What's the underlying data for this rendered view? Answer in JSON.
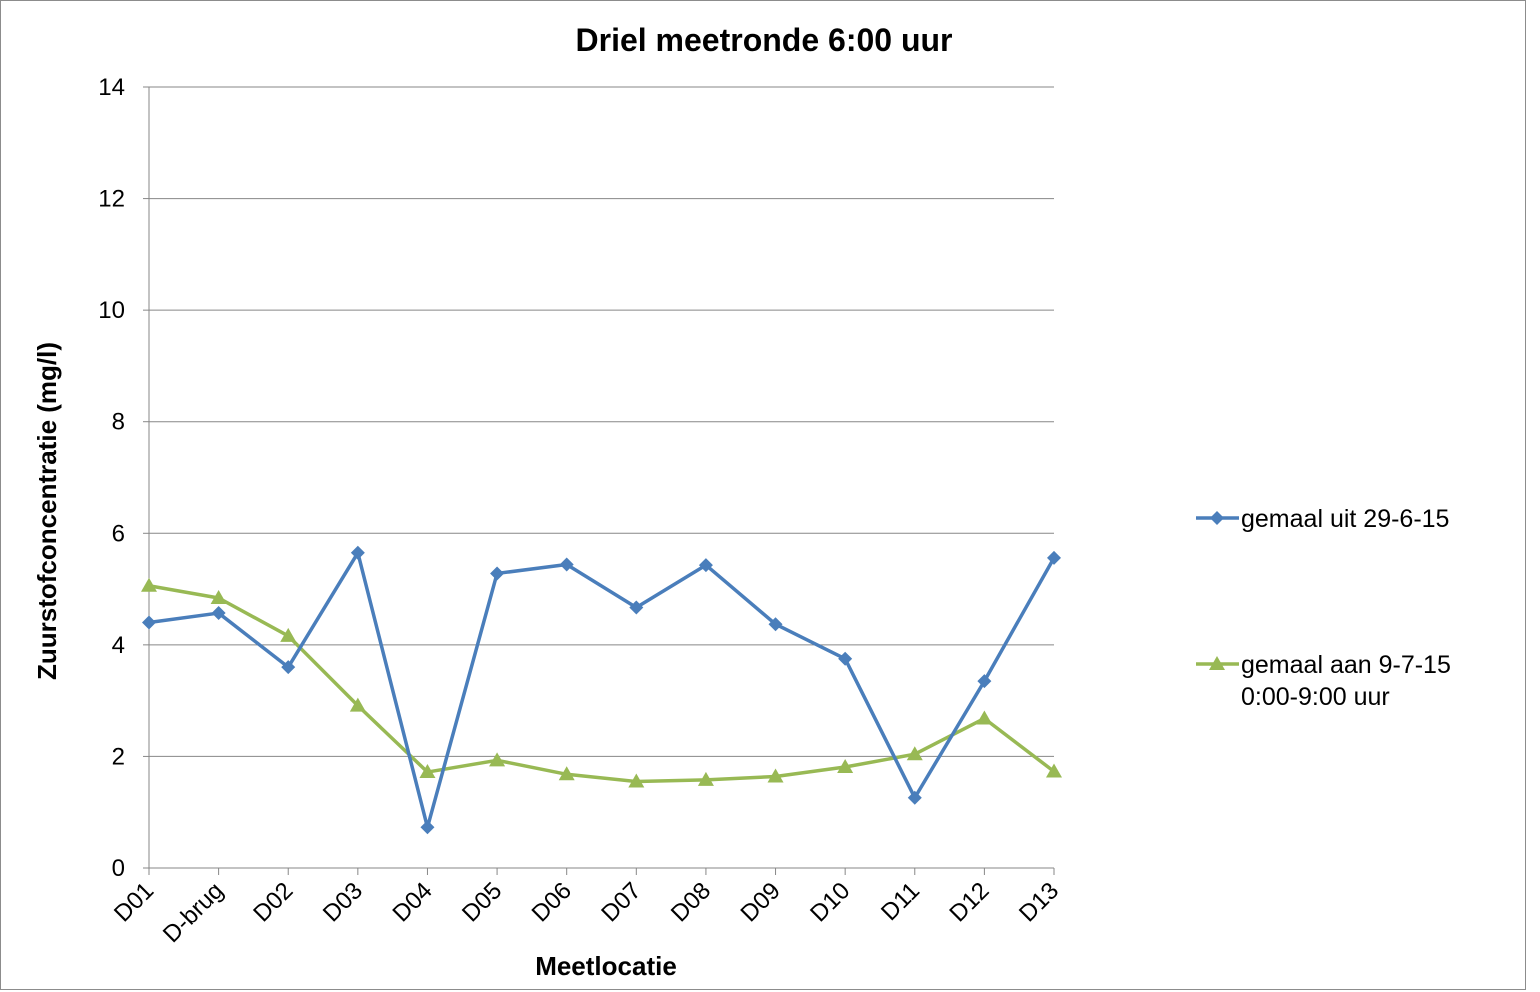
{
  "chart_data": {
    "type": "line",
    "title": "Driel meetronde 6:00 uur",
    "xlabel": "Meetlocatie",
    "ylabel": "Zuurstofconcentratie (mg/l)",
    "ylim": [
      0,
      14
    ],
    "yticks": [
      0,
      2,
      4,
      6,
      8,
      10,
      12,
      14
    ],
    "grid": "horizontal",
    "legend_position": "right",
    "categories": [
      "D01",
      "D-brug",
      "D02",
      "D03",
      "D04",
      "D05",
      "D06",
      "D07",
      "D08",
      "D09",
      "D10",
      "D11",
      "D12",
      "D13"
    ],
    "series": [
      {
        "name": "gemaal uit 29-6-15",
        "name_lines": [
          "gemaal uit 29-6-15"
        ],
        "color": "#4a7ebb",
        "marker": "diamond",
        "values": [
          4.4,
          4.57,
          3.6,
          5.65,
          0.73,
          5.28,
          5.44,
          4.67,
          5.43,
          4.37,
          3.75,
          1.26,
          3.35,
          5.56
        ]
      },
      {
        "name": "gemaal aan 9-7-15 0:00-9:00 uur",
        "name_lines": [
          "gemaal aan 9-7-15",
          "0:00-9:00 uur"
        ],
        "color": "#98b954",
        "marker": "triangle",
        "values": [
          5.06,
          4.84,
          4.16,
          2.91,
          1.72,
          1.93,
          1.68,
          1.55,
          1.58,
          1.64,
          1.81,
          2.04,
          2.68,
          1.73
        ]
      }
    ]
  }
}
